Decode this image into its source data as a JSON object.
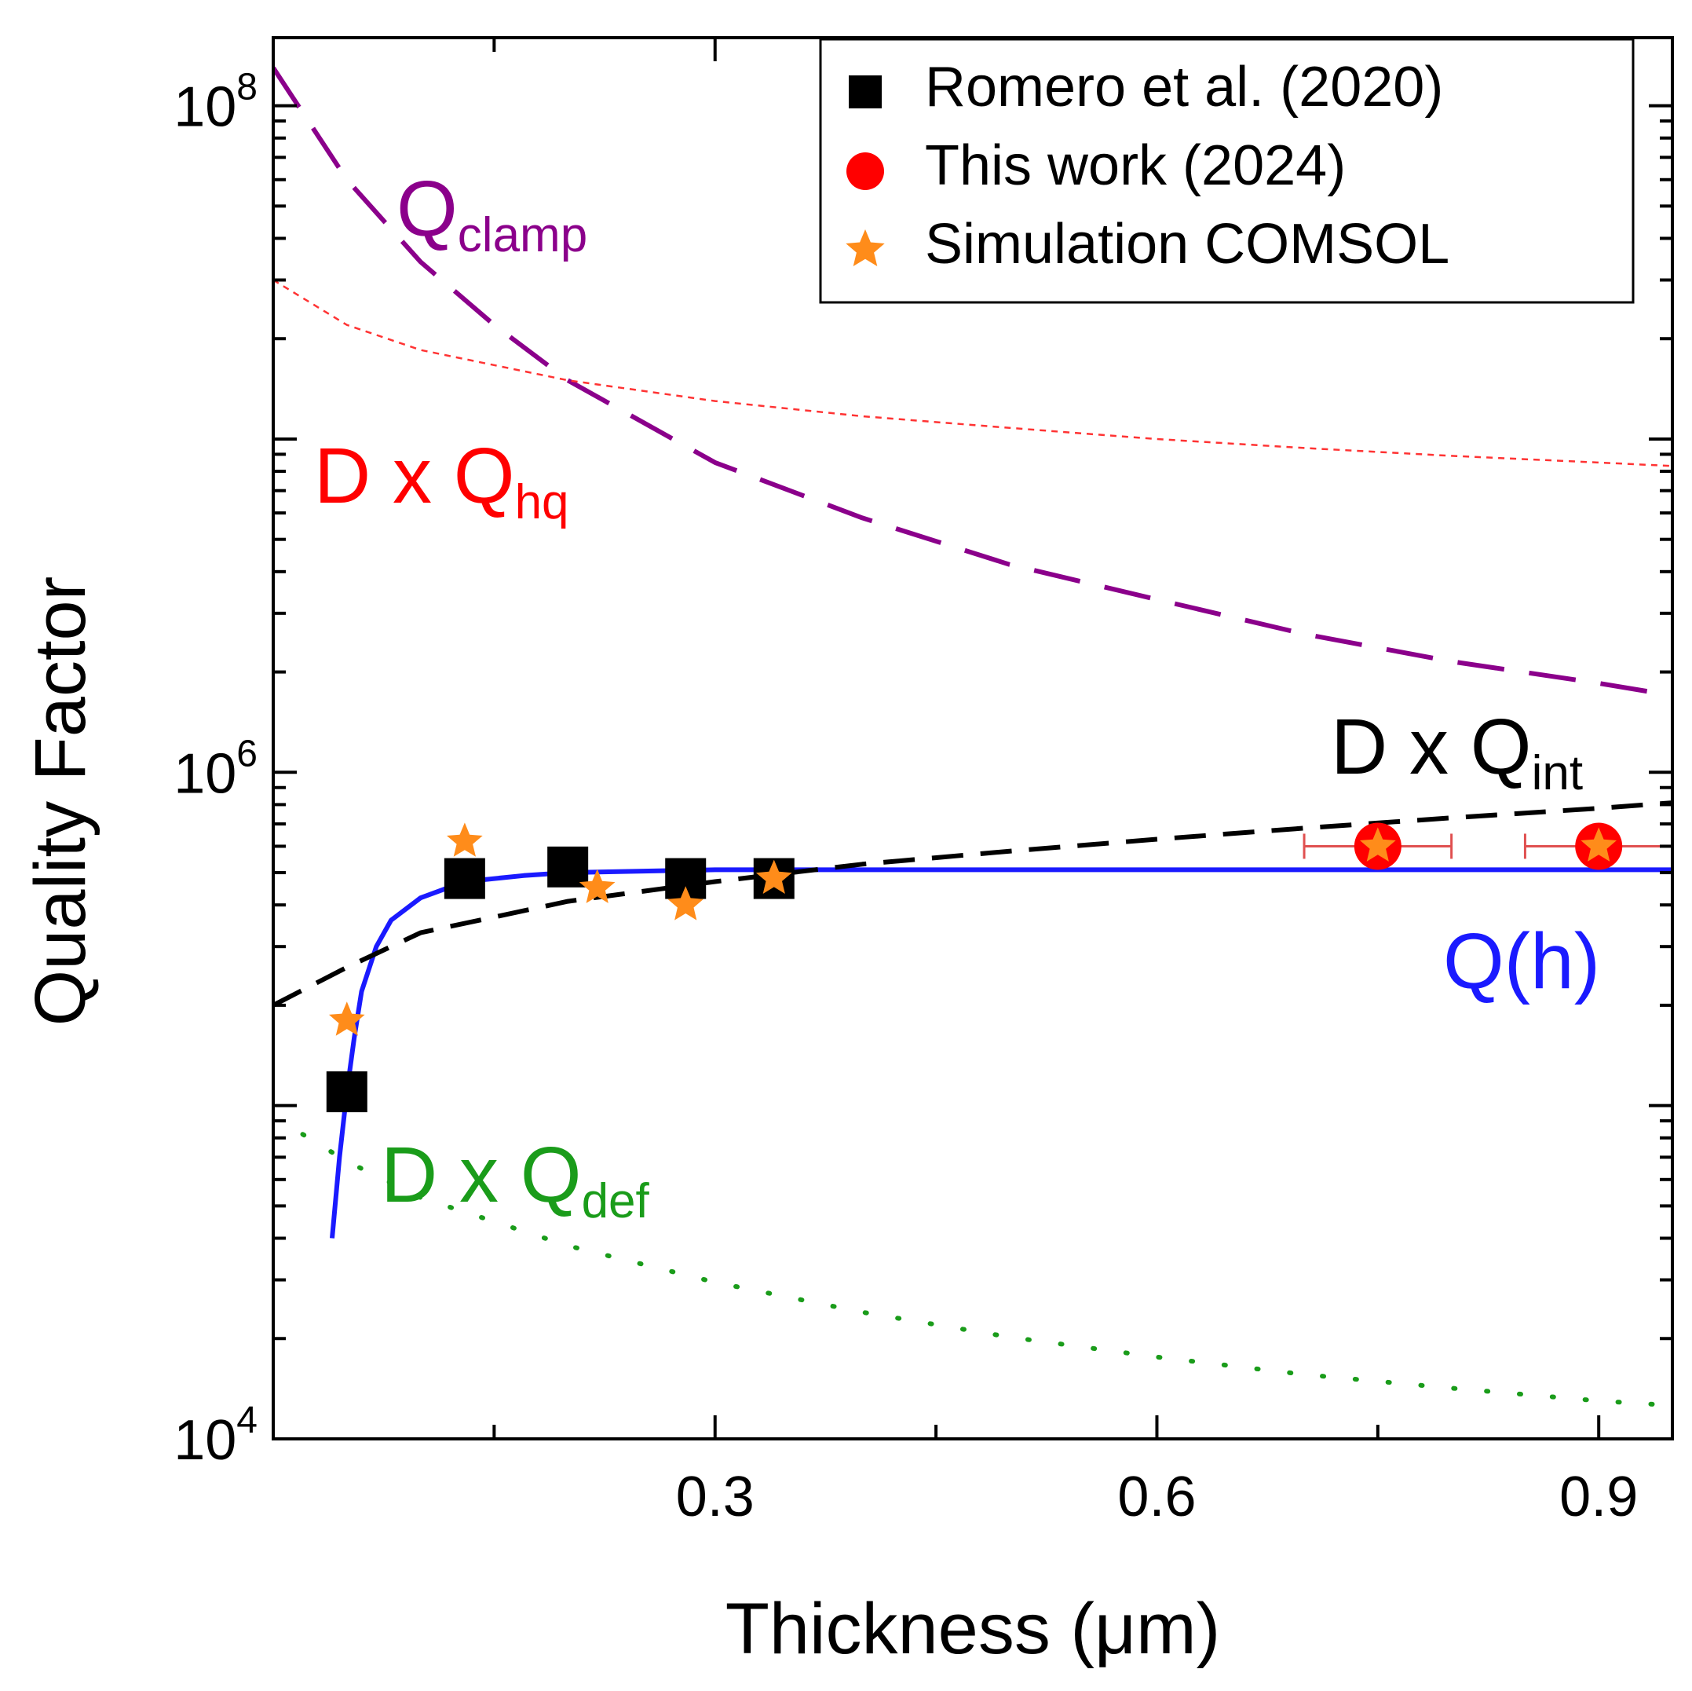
{
  "chart_data": {
    "type": "scatter",
    "xlabel": "Thickness (μm)",
    "ylabel": "Quality Factor",
    "xlim": [
      0.0,
      0.95
    ],
    "ylim": [
      10000,
      160000000
    ],
    "yscale": "log",
    "xticks": [
      {
        "value": 0.3,
        "label": "0.3"
      },
      {
        "value": 0.6,
        "label": "0.6"
      },
      {
        "value": 0.9,
        "label": "0.9"
      }
    ],
    "yticks": [
      {
        "value": 10000,
        "base": "10",
        "exp": "4"
      },
      {
        "value": 1000000,
        "base": "10",
        "exp": "6"
      },
      {
        "value": 100000000,
        "base": "10",
        "exp": "8"
      }
    ],
    "legend": {
      "position": "top-right",
      "entries": [
        {
          "label": "Romero et al. (2020)",
          "marker": "square",
          "color": "#000000"
        },
        {
          "label": "This work (2024)",
          "marker": "circle",
          "color": "#ff0000"
        },
        {
          "label": "Simulation COMSOL",
          "marker": "star",
          "color": "#ff8c1a"
        }
      ]
    },
    "series": [
      {
        "name": "Romero et al. (2020)",
        "marker": "square",
        "color": "#000000",
        "points": [
          {
            "x": 0.05,
            "y": 110000
          },
          {
            "x": 0.13,
            "y": 480000
          },
          {
            "x": 0.2,
            "y": 520000
          },
          {
            "x": 0.28,
            "y": 480000
          },
          {
            "x": 0.34,
            "y": 480000
          }
        ]
      },
      {
        "name": "This work (2024)",
        "marker": "circle",
        "color": "#ff0000",
        "points": [
          {
            "x": 0.75,
            "y": 600000,
            "xerr": 0.05
          },
          {
            "x": 0.9,
            "y": 600000,
            "xerr": 0.05
          }
        ]
      },
      {
        "name": "Simulation COMSOL",
        "marker": "star",
        "color": "#ff8c1a",
        "points": [
          {
            "x": 0.05,
            "y": 180000
          },
          {
            "x": 0.13,
            "y": 620000
          },
          {
            "x": 0.22,
            "y": 450000
          },
          {
            "x": 0.28,
            "y": 400000
          },
          {
            "x": 0.34,
            "y": 480000
          },
          {
            "x": 0.75,
            "y": 600000
          },
          {
            "x": 0.9,
            "y": 600000
          }
        ]
      }
    ],
    "curves": [
      {
        "name": "Q(h)",
        "style": "solid",
        "color": "#1a1aff",
        "points": [
          [
            0.04,
            40000
          ],
          [
            0.045,
            70000
          ],
          [
            0.05,
            110000
          ],
          [
            0.055,
            160000
          ],
          [
            0.06,
            220000
          ],
          [
            0.07,
            300000
          ],
          [
            0.08,
            360000
          ],
          [
            0.1,
            420000
          ],
          [
            0.13,
            470000
          ],
          [
            0.17,
            490000
          ],
          [
            0.2,
            500000
          ],
          [
            0.3,
            510000
          ],
          [
            0.5,
            510000
          ],
          [
            0.7,
            510000
          ],
          [
            0.95,
            510000
          ]
        ]
      },
      {
        "name": "D x Q_int",
        "style": "dashed",
        "color": "#000000",
        "points": [
          [
            0.0,
            200000
          ],
          [
            0.05,
            260000
          ],
          [
            0.1,
            330000
          ],
          [
            0.2,
            410000
          ],
          [
            0.3,
            470000
          ],
          [
            0.4,
            530000
          ],
          [
            0.5,
            580000
          ],
          [
            0.6,
            630000
          ],
          [
            0.7,
            680000
          ],
          [
            0.8,
            730000
          ],
          [
            0.9,
            780000
          ],
          [
            0.95,
            810000
          ]
        ]
      },
      {
        "name": "Q_clamp",
        "style": "longdash",
        "color": "#8b008b",
        "points": [
          [
            0.0,
            130000000
          ],
          [
            0.05,
            60000000
          ],
          [
            0.1,
            34000000
          ],
          [
            0.15,
            22000000
          ],
          [
            0.2,
            15000000
          ],
          [
            0.3,
            8500000
          ],
          [
            0.4,
            5800000
          ],
          [
            0.5,
            4200000
          ],
          [
            0.6,
            3300000
          ],
          [
            0.7,
            2600000
          ],
          [
            0.8,
            2150000
          ],
          [
            0.9,
            1850000
          ],
          [
            0.95,
            1700000
          ]
        ]
      },
      {
        "name": "D x Q_hq",
        "style": "dotted-fine",
        "color": "#ff3333",
        "points": [
          [
            0.0,
            30000000
          ],
          [
            0.05,
            22000000
          ],
          [
            0.1,
            18500000
          ],
          [
            0.2,
            15000000
          ],
          [
            0.3,
            13000000
          ],
          [
            0.4,
            11700000
          ],
          [
            0.5,
            10800000
          ],
          [
            0.6,
            10000000
          ],
          [
            0.7,
            9400000
          ],
          [
            0.8,
            8900000
          ],
          [
            0.9,
            8500000
          ],
          [
            0.95,
            8300000
          ]
        ]
      },
      {
        "name": "D x Q_def",
        "style": "dotted",
        "color": "#1a9c1a",
        "points": [
          [
            0.02,
            82000
          ],
          [
            0.05,
            68000
          ],
          [
            0.1,
            53000
          ],
          [
            0.2,
            38000
          ],
          [
            0.3,
            29500
          ],
          [
            0.4,
            24000
          ],
          [
            0.5,
            20200
          ],
          [
            0.6,
            17600
          ],
          [
            0.7,
            15600
          ],
          [
            0.8,
            14200
          ],
          [
            0.9,
            13000
          ],
          [
            0.95,
            12600
          ]
        ]
      }
    ],
    "annotations": [
      {
        "base": "Q",
        "sub": "clamp",
        "color": "#8b008b"
      },
      {
        "base": "D x Q",
        "sub": "hq",
        "color": "#ff0000"
      },
      {
        "base": "D x Q",
        "sub": "int",
        "color": "#000000"
      },
      {
        "base": "Q(h)",
        "sub": "",
        "color": "#1a1aff"
      },
      {
        "base": "D x Q",
        "sub": "def",
        "color": "#1a9c1a"
      }
    ]
  }
}
